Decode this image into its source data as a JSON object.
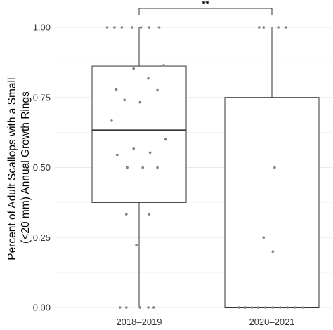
{
  "chart_data": {
    "type": "boxplot",
    "title": "",
    "xlabel": "",
    "ylabel_lines": [
      "Percent of Adult Scallops with a Small",
      "(<20 mm) Annual Growth Rings"
    ],
    "ylim": [
      0,
      1
    ],
    "y_ticks": [
      0,
      0.25,
      0.5,
      0.75,
      1
    ],
    "y_tick_labels": [
      "0.00",
      "0.25",
      "0.50",
      "0.75",
      "1.00"
    ],
    "grid": "horizontal",
    "categories": [
      "2018–2019",
      "2020–2021"
    ],
    "boxes": [
      {
        "category": "2018–2019",
        "min": 0,
        "q1": 0.375,
        "median": 0.633,
        "q3": 0.862,
        "max": 1.0
      },
      {
        "category": "2020–2021",
        "min": 0,
        "q1": 0,
        "median": 0,
        "q3": 0.75,
        "max": 1.0
      }
    ],
    "points": [
      {
        "group": 0,
        "jitter": -0.35,
        "y": 1.0
      },
      {
        "group": 0,
        "jitter": -0.27,
        "y": 1.0
      },
      {
        "group": 0,
        "jitter": -0.19,
        "y": 1.0
      },
      {
        "group": 0,
        "jitter": -0.08,
        "y": 1.0
      },
      {
        "group": 0,
        "jitter": 0.02,
        "y": 1.0
      },
      {
        "group": 0,
        "jitter": 0.11,
        "y": 1.0
      },
      {
        "group": 0,
        "jitter": 0.22,
        "y": 1.0
      },
      {
        "group": 0,
        "jitter": 0.27,
        "y": 0.865
      },
      {
        "group": 0,
        "jitter": -0.06,
        "y": 0.853
      },
      {
        "group": 0,
        "jitter": 0.1,
        "y": 0.818
      },
      {
        "group": 0,
        "jitter": -0.25,
        "y": 0.778
      },
      {
        "group": 0,
        "jitter": 0.2,
        "y": 0.776
      },
      {
        "group": 0,
        "jitter": -0.16,
        "y": 0.741
      },
      {
        "group": 0,
        "jitter": 0.01,
        "y": 0.733
      },
      {
        "group": 0,
        "jitter": -0.3,
        "y": 0.667
      },
      {
        "group": 0,
        "jitter": 0.29,
        "y": 0.6
      },
      {
        "group": 0,
        "jitter": -0.06,
        "y": 0.567
      },
      {
        "group": 0,
        "jitter": 0.12,
        "y": 0.553
      },
      {
        "group": 0,
        "jitter": -0.24,
        "y": 0.545
      },
      {
        "group": 0,
        "jitter": -0.13,
        "y": 0.5
      },
      {
        "group": 0,
        "jitter": 0.04,
        "y": 0.5
      },
      {
        "group": 0,
        "jitter": 0.2,
        "y": 0.5
      },
      {
        "group": 0,
        "jitter": -0.14,
        "y": 0.333
      },
      {
        "group": 0,
        "jitter": 0.11,
        "y": 0.333
      },
      {
        "group": 0,
        "jitter": -0.03,
        "y": 0.222
      },
      {
        "group": 0,
        "jitter": -0.21,
        "y": 0.0
      },
      {
        "group": 0,
        "jitter": -0.14,
        "y": 0.0
      },
      {
        "group": 0,
        "jitter": 0.01,
        "y": 0.0
      },
      {
        "group": 0,
        "jitter": 0.1,
        "y": 0.0
      },
      {
        "group": 0,
        "jitter": 0.16,
        "y": 0.0
      },
      {
        "group": 1,
        "jitter": -0.14,
        "y": 1.0
      },
      {
        "group": 1,
        "jitter": -0.09,
        "y": 1.0
      },
      {
        "group": 1,
        "jitter": 0.07,
        "y": 1.0
      },
      {
        "group": 1,
        "jitter": 0.15,
        "y": 1.0
      },
      {
        "group": 1,
        "jitter": 0.03,
        "y": 0.5
      },
      {
        "group": 1,
        "jitter": -0.09,
        "y": 0.25
      },
      {
        "group": 1,
        "jitter": 0.01,
        "y": 0.2
      },
      {
        "group": 1,
        "jitter": -0.36,
        "y": 0.0
      },
      {
        "group": 1,
        "jitter": -0.29,
        "y": 0.0
      },
      {
        "group": 1,
        "jitter": -0.22,
        "y": 0.0
      },
      {
        "group": 1,
        "jitter": -0.15,
        "y": 0.0
      },
      {
        "group": 1,
        "jitter": -0.07,
        "y": 0.0
      },
      {
        "group": 1,
        "jitter": 0.01,
        "y": 0.0
      },
      {
        "group": 1,
        "jitter": 0.09,
        "y": 0.0
      },
      {
        "group": 1,
        "jitter": 0.17,
        "y": 0.0
      },
      {
        "group": 1,
        "jitter": 0.25,
        "y": 0.0
      },
      {
        "group": 1,
        "jitter": 0.34,
        "y": 0.0
      }
    ],
    "significance": {
      "from": 0,
      "to": 1,
      "label": "**"
    },
    "colors": {
      "box_line": "#333333",
      "point": "#808080",
      "grid": "#ebebeb",
      "background": "#ffffff"
    }
  }
}
